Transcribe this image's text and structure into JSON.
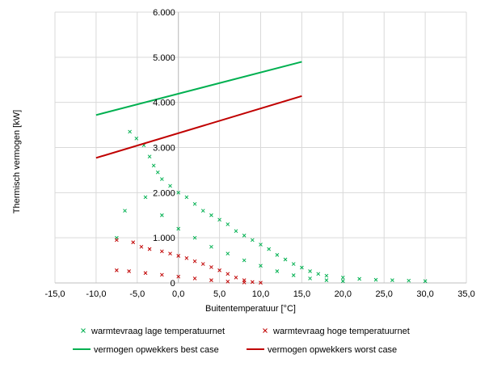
{
  "chart_data": {
    "type": "scatter",
    "xlabel": "Buitentemperatuur [°C]",
    "ylabel": "Thermisch vermogen [kW]",
    "xlim": [
      -15,
      35
    ],
    "ylim": [
      0,
      6000
    ],
    "x_ticks": [
      -15,
      -10,
      -5,
      0,
      5,
      10,
      15,
      20,
      25,
      30,
      35
    ],
    "x_tick_labels": [
      "-15,0",
      "-10,0",
      "-5,0",
      "0,0",
      "5,0",
      "10,0",
      "15,0",
      "20,0",
      "25,0",
      "30,0",
      "35,0"
    ],
    "y_ticks": [
      0,
      1000,
      2000,
      3000,
      4000,
      5000,
      6000
    ],
    "y_tick_labels": [
      "0",
      "1.000",
      "2.000",
      "3.000",
      "4.000",
      "5.000",
      "6.000"
    ],
    "grid": "vertical and horizontal major gridlines",
    "legend_position": "bottom",
    "series": [
      {
        "name": "warmtevraag lage temperatuurnet",
        "kind": "scatter",
        "marker": "x",
        "color": "#00b050",
        "points": [
          [
            -5.9,
            3350
          ],
          [
            -5.1,
            3200
          ],
          [
            -4.2,
            3050
          ],
          [
            -3.5,
            2800
          ],
          [
            -3.0,
            2600
          ],
          [
            -2.5,
            2450
          ],
          [
            -2.0,
            2300
          ],
          [
            -1.0,
            2150
          ],
          [
            0.0,
            2000
          ],
          [
            1.0,
            1900
          ],
          [
            2.0,
            1750
          ],
          [
            3.0,
            1600
          ],
          [
            4.0,
            1500
          ],
          [
            5.0,
            1400
          ],
          [
            6.0,
            1300
          ],
          [
            7.0,
            1150
          ],
          [
            8.0,
            1050
          ],
          [
            9.0,
            950
          ],
          [
            10.0,
            850
          ],
          [
            11.0,
            750
          ],
          [
            12.0,
            620
          ],
          [
            13.0,
            520
          ],
          [
            14.0,
            420
          ],
          [
            15.0,
            340
          ],
          [
            16.0,
            260
          ],
          [
            17.0,
            200
          ],
          [
            18.0,
            160
          ],
          [
            20.0,
            120
          ],
          [
            22.0,
            90
          ],
          [
            24.0,
            70
          ],
          [
            26.0,
            60
          ],
          [
            28.0,
            50
          ],
          [
            30.0,
            40
          ],
          [
            -7.5,
            1000
          ],
          [
            -6.5,
            1600
          ],
          [
            -4.0,
            1900
          ],
          [
            -2.0,
            1500
          ],
          [
            0.0,
            1200
          ],
          [
            2.0,
            1000
          ],
          [
            4.0,
            800
          ],
          [
            6.0,
            650
          ],
          [
            8.0,
            500
          ],
          [
            10.0,
            380
          ],
          [
            12.0,
            260
          ],
          [
            14.0,
            170
          ],
          [
            16.0,
            100
          ],
          [
            18.0,
            60
          ],
          [
            20.0,
            40
          ]
        ]
      },
      {
        "name": "warmtevraag hoge temperatuurnet",
        "kind": "scatter",
        "marker": "x",
        "color": "#c00000",
        "points": [
          [
            -7.5,
            950
          ],
          [
            -5.5,
            900
          ],
          [
            -4.5,
            800
          ],
          [
            -3.5,
            750
          ],
          [
            -2.0,
            700
          ],
          [
            -1.0,
            650
          ],
          [
            0.0,
            600
          ],
          [
            1.0,
            550
          ],
          [
            2.0,
            480
          ],
          [
            3.0,
            420
          ],
          [
            4.0,
            350
          ],
          [
            5.0,
            280
          ],
          [
            6.0,
            200
          ],
          [
            7.0,
            120
          ],
          [
            8.0,
            60
          ],
          [
            9.0,
            20
          ],
          [
            10.0,
            5
          ],
          [
            -7.5,
            280
          ],
          [
            -6.0,
            260
          ],
          [
            -4.0,
            220
          ],
          [
            -2.0,
            180
          ],
          [
            0.0,
            140
          ],
          [
            2.0,
            100
          ],
          [
            4.0,
            60
          ],
          [
            6.0,
            30
          ],
          [
            8.0,
            10
          ]
        ]
      },
      {
        "name": "vermogen opwekkers best case",
        "kind": "line",
        "color": "#00b050",
        "points": [
          [
            -10,
            3720
          ],
          [
            15,
            4900
          ]
        ]
      },
      {
        "name": "vermogen opwekkers worst case",
        "kind": "line",
        "color": "#c00000",
        "points": [
          [
            -10,
            2770
          ],
          [
            15,
            4140
          ]
        ]
      }
    ]
  }
}
